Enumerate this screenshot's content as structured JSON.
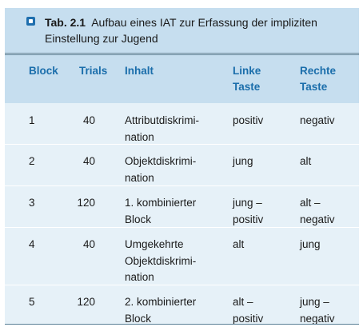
{
  "caption": {
    "label": "Tab. 2.1",
    "title_line1": "Aufbau eines IAT zur Erfassung der impliziten",
    "title_line2": "Einstellung zur Jugend"
  },
  "columns": {
    "block": "Block",
    "trials": "Trials",
    "inhalt": "Inhalt",
    "links_1": "Linke",
    "links_2": "Taste",
    "rechts_1": "Rechte",
    "rechts_2": "Taste"
  },
  "rows": [
    {
      "block": "1",
      "trials": "40",
      "inhalt": [
        "Attributdiskrimi-",
        "nation"
      ],
      "links": [
        "positiv"
      ],
      "rechts": [
        "negativ"
      ]
    },
    {
      "block": "2",
      "trials": "40",
      "inhalt": [
        "Objektdiskrimi-",
        "nation"
      ],
      "links": [
        "jung"
      ],
      "rechts": [
        "alt"
      ]
    },
    {
      "block": "3",
      "trials": "120",
      "inhalt": [
        "1. kombinierter",
        "Block"
      ],
      "links": [
        "jung –",
        "positiv"
      ],
      "rechts": [
        "alt –",
        "negativ"
      ]
    },
    {
      "block": "4",
      "trials": "40",
      "inhalt": [
        "Umgekehrte",
        "Objektdiskrimi-",
        "nation"
      ],
      "links": [
        "alt"
      ],
      "rechts": [
        "jung"
      ]
    },
    {
      "block": "5",
      "trials": "120",
      "inhalt": [
        "2. kombinierter",
        "Block"
      ],
      "links": [
        "alt –",
        "positiv"
      ],
      "rechts": [
        "jung –",
        "negativ"
      ]
    }
  ],
  "colors": {
    "header_bg": "#c6deef",
    "body_bg": "#e6f1f8",
    "header_text": "#1b6eab",
    "icon": "#1f6fae"
  }
}
